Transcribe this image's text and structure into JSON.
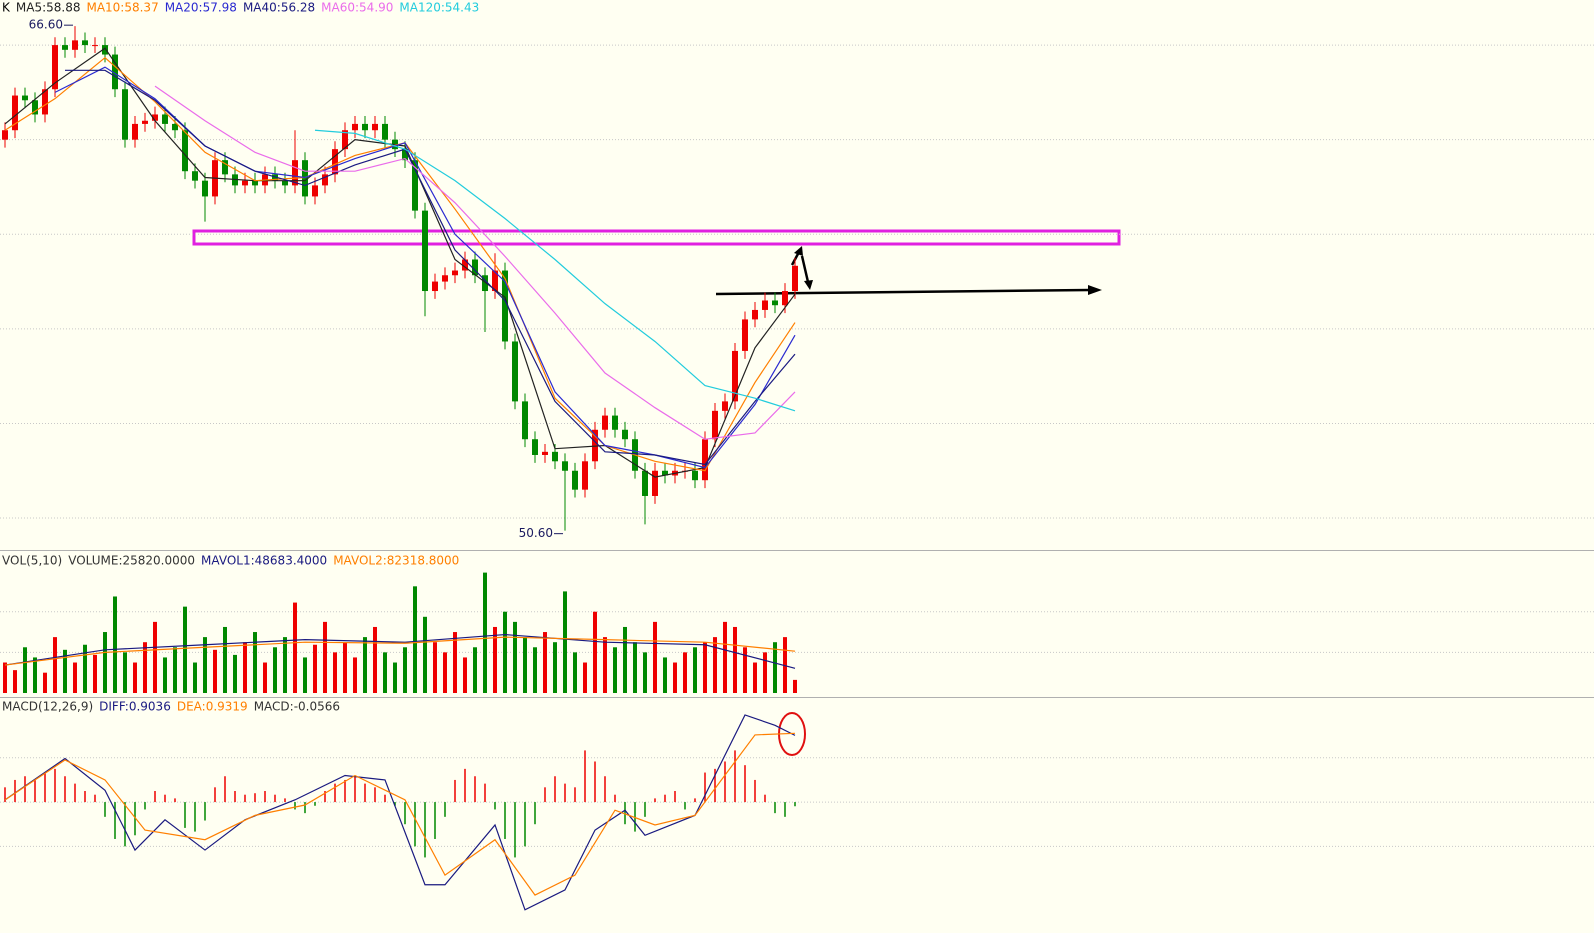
{
  "chart_data": [
    {
      "type": "candlestick",
      "title": "K",
      "open": [
        63.0,
        63.3,
        64.4,
        64.25,
        63.8,
        64.6,
        66.0,
        65.85,
        66.15,
        66.0,
        66.0,
        65.7,
        64.6,
        63.0,
        63.5,
        63.6,
        63.8,
        63.5,
        63.3,
        62.0,
        61.7,
        61.2,
        62.35,
        61.9,
        61.55,
        61.7,
        61.55,
        61.9,
        61.7,
        61.55,
        62.35,
        61.2,
        61.55,
        61.9,
        62.7,
        63.3,
        63.5,
        63.3,
        63.5,
        63.0,
        62.7,
        62.35,
        60.75,
        58.2,
        58.5,
        58.7,
        58.85,
        59.2,
        58.7,
        58.2,
        58.85,
        56.6,
        54.7,
        53.5,
        53.0,
        53.1,
        52.8,
        52.5,
        51.9,
        52.8,
        53.8,
        54.25,
        53.8,
        53.5,
        52.5,
        51.7,
        52.5,
        52.35,
        52.5,
        52.5,
        52.2,
        53.5,
        54.4,
        54.7,
        56.3,
        57.3,
        57.6,
        57.9,
        57.75,
        58.2
      ],
      "high": [
        63.55,
        64.65,
        64.65,
        64.5,
        64.85,
        66.25,
        66.25,
        66.6,
        66.4,
        66.25,
        66.25,
        65.95,
        64.85,
        63.75,
        63.85,
        64.05,
        64.05,
        63.75,
        63.55,
        62.25,
        61.95,
        62.6,
        62.6,
        62.15,
        61.95,
        61.95,
        62.15,
        62.15,
        61.95,
        63.3,
        62.6,
        61.8,
        62.15,
        62.95,
        63.55,
        63.75,
        63.75,
        63.75,
        63.75,
        63.25,
        62.95,
        62.6,
        61.0,
        58.75,
        58.95,
        59.1,
        59.45,
        59.45,
        58.95,
        59.4,
        59.1,
        56.85,
        54.95,
        53.75,
        53.35,
        53.35,
        53.05,
        52.75,
        53.05,
        54.05,
        54.5,
        54.5,
        54.05,
        53.75,
        52.75,
        52.75,
        52.75,
        52.75,
        52.75,
        52.75,
        53.75,
        54.65,
        54.95,
        56.55,
        57.55,
        57.85,
        58.15,
        58.15,
        58.45,
        59.25
      ],
      "low": [
        62.75,
        63.05,
        64.0,
        63.55,
        63.55,
        64.35,
        65.6,
        65.6,
        65.75,
        65.75,
        65.45,
        64.35,
        62.75,
        62.75,
        63.25,
        63.35,
        63.25,
        63.05,
        61.75,
        61.45,
        60.4,
        60.95,
        61.65,
        61.3,
        61.3,
        61.3,
        61.3,
        61.45,
        61.3,
        61.3,
        60.95,
        60.95,
        61.3,
        61.65,
        62.45,
        63.05,
        63.05,
        63.05,
        62.75,
        62.45,
        62.1,
        60.5,
        57.4,
        57.95,
        58.25,
        58.45,
        58.6,
        58.45,
        56.9,
        57.95,
        56.35,
        54.45,
        53.25,
        52.75,
        52.75,
        52.55,
        50.6,
        51.65,
        51.65,
        52.55,
        53.55,
        53.55,
        53.25,
        52.25,
        50.8,
        51.45,
        52.1,
        52.1,
        52.25,
        51.95,
        51.95,
        53.25,
        54.15,
        54.45,
        56.05,
        57.05,
        57.35,
        57.5,
        57.5,
        57.95
      ],
      "close": [
        63.3,
        64.4,
        64.25,
        63.8,
        64.6,
        66.0,
        65.85,
        66.15,
        66.0,
        66.0,
        65.7,
        64.6,
        63.0,
        63.5,
        63.6,
        63.8,
        63.5,
        63.3,
        62.0,
        61.7,
        61.2,
        62.35,
        61.9,
        61.55,
        61.7,
        61.55,
        61.9,
        61.7,
        61.55,
        62.35,
        61.2,
        61.55,
        61.9,
        62.7,
        63.3,
        63.5,
        63.3,
        63.5,
        63.0,
        62.7,
        62.35,
        60.75,
        58.2,
        58.5,
        58.7,
        58.85,
        59.2,
        58.7,
        58.2,
        58.85,
        56.6,
        54.7,
        53.5,
        53.0,
        53.1,
        52.8,
        52.5,
        51.9,
        52.8,
        53.8,
        54.25,
        53.8,
        53.5,
        52.5,
        51.7,
        52.5,
        52.35,
        52.5,
        52.5,
        52.2,
        53.5,
        54.4,
        54.7,
        56.3,
        57.3,
        57.6,
        57.9,
        57.75,
        58.2,
        59.0
      ],
      "up_color": "#ee0000",
      "down_color": "#008800",
      "series": [
        {
          "name": "MA5:58.88",
          "color": "#222222",
          "x": [
            0,
            5,
            10,
            15,
            20,
            25,
            30,
            35,
            40,
            45,
            50,
            55,
            60,
            65,
            70,
            75,
            79
          ],
          "values": [
            63.5,
            64.8,
            65.9,
            63.6,
            61.8,
            61.7,
            61.7,
            63.0,
            62.8,
            59.2,
            58.0,
            53.2,
            53.3,
            52.3,
            52.6,
            56.4,
            58.1
          ]
        },
        {
          "name": "MA10:58.37",
          "color": "#ff7f00",
          "x": [
            0,
            5,
            10,
            15,
            20,
            25,
            30,
            35,
            40,
            45,
            50,
            55,
            60,
            65,
            70,
            75,
            79
          ],
          "values": [
            63.3,
            64.3,
            65.6,
            64.2,
            62.6,
            61.7,
            61.8,
            62.5,
            62.9,
            60.8,
            58.6,
            54.8,
            53.3,
            52.8,
            52.5,
            55.3,
            57.2
          ]
        },
        {
          "name": "MA20:57.98",
          "color": "#2a2ad0",
          "x": [
            5,
            10,
            15,
            20,
            25,
            30,
            35,
            40,
            45,
            50,
            55,
            60,
            65,
            70,
            75,
            79
          ],
          "values": [
            64.5,
            65.3,
            64.3,
            62.8,
            62.0,
            61.8,
            62.4,
            62.9,
            60.0,
            58.5,
            55.0,
            53.3,
            53.0,
            52.6,
            54.6,
            56.8
          ]
        },
        {
          "name": "MA40:56.28",
          "color": "#1a1a80",
          "x": [
            6,
            10,
            15,
            20,
            25,
            30,
            35,
            40,
            45,
            50,
            55,
            60,
            65,
            70,
            75,
            79
          ],
          "values": [
            65.2,
            65.2,
            64.25,
            62.8,
            62.0,
            61.55,
            62.2,
            62.7,
            59.5,
            57.9,
            54.7,
            53.1,
            53.0,
            52.7,
            54.7,
            56.2
          ]
        },
        {
          "name": "MA60:54.90",
          "color": "#ea6cea",
          "x": [
            15,
            20,
            25,
            30,
            35,
            40,
            45,
            50,
            55,
            60,
            65,
            70,
            75,
            79
          ],
          "values": [
            64.7,
            63.6,
            62.6,
            62.0,
            62.0,
            62.4,
            61.0,
            59.3,
            57.5,
            55.6,
            54.5,
            53.5,
            53.7,
            55.0
          ]
        },
        {
          "name": "MA120:54.43",
          "color": "#22ccdd",
          "x": [
            31,
            35,
            40,
            45,
            50,
            55,
            60,
            65,
            70,
            75,
            79
          ],
          "values": [
            63.3,
            63.2,
            62.7,
            61.7,
            60.5,
            59.2,
            57.8,
            56.6,
            55.2,
            54.8,
            54.4
          ]
        }
      ],
      "ylim": [
        50.05,
        67.43
      ],
      "gridlines": [
        51,
        54,
        57,
        60,
        63,
        66
      ],
      "annotations": [
        {
          "text": "66.60",
          "value": 66.6,
          "x": 7
        },
        {
          "text": "50.60",
          "value": 50.6,
          "x": 56
        }
      ]
    },
    {
      "type": "volume",
      "title": "VOL(5,10)",
      "legend_label": "VOLUME:25820.0000",
      "values": [
        60000,
        45000,
        90000,
        70000,
        40000,
        110000,
        85000,
        60000,
        95000,
        75000,
        120000,
        190000,
        80000,
        60000,
        100000,
        140000,
        70000,
        90000,
        170000,
        60000,
        110000,
        85000,
        130000,
        75000,
        100000,
        120000,
        60000,
        90000,
        110000,
        178000,
        70000,
        95000,
        140000,
        80000,
        100000,
        70000,
        110000,
        130000,
        80000,
        60000,
        90000,
        210000,
        150000,
        100000,
        80000,
        120000,
        70000,
        90000,
        237000,
        130000,
        160000,
        140000,
        110000,
        90000,
        120000,
        100000,
        200000,
        80000,
        60000,
        160000,
        110000,
        90000,
        130000,
        100000,
        80000,
        140000,
        70000,
        60000,
        80000,
        90000,
        100000,
        110000,
        140000,
        130000,
        90000,
        60000,
        80000,
        100000,
        110000,
        25820
      ],
      "series": [
        {
          "name": "MAVOL1:48683.4000",
          "color": "#1a1a80",
          "x": [
            0,
            10,
            20,
            30,
            40,
            50,
            60,
            70,
            79
          ],
          "values": [
            55000,
            85000,
            95000,
            105000,
            100000,
            115000,
            100000,
            95000,
            48683.4
          ]
        },
        {
          "name": "MAVOL2:82318.8000",
          "color": "#ff7f00",
          "x": [
            0,
            10,
            20,
            30,
            40,
            50,
            60,
            70,
            79
          ],
          "values": [
            55000,
            80000,
            90000,
            100000,
            98000,
            110000,
            105000,
            100000,
            82318.8
          ]
        }
      ],
      "ylim": [
        0,
        250000
      ],
      "gridlines": [
        80000,
        160000
      ]
    },
    {
      "type": "macd",
      "title": "MACD(12,26,9)",
      "histogram": {
        "name": "MACD:-0.0566",
        "values": [
          0.2,
          0.3,
          0.35,
          0.3,
          0.4,
          0.45,
          0.35,
          0.25,
          0.15,
          0.1,
          -0.2,
          -0.5,
          -0.6,
          -0.45,
          -0.1,
          0.15,
          0.1,
          0.05,
          -0.35,
          -0.4,
          -0.25,
          0.2,
          0.35,
          0.15,
          0.1,
          0.12,
          0.15,
          0.1,
          0.05,
          -0.1,
          -0.15,
          -0.05,
          0.15,
          0.25,
          0.3,
          0.35,
          0.25,
          0.2,
          0.1,
          -0.05,
          -0.3,
          -0.6,
          -0.75,
          -0.5,
          -0.2,
          0.3,
          0.45,
          0.35,
          0.25,
          -0.1,
          -0.5,
          -0.75,
          -0.6,
          -0.3,
          0.2,
          0.35,
          0.25,
          0.2,
          0.7,
          0.55,
          0.35,
          0.1,
          -0.3,
          -0.4,
          -0.2,
          0.05,
          0.1,
          0.15,
          -0.1,
          0.05,
          0.4,
          0.45,
          0.55,
          0.7,
          0.5,
          0.3,
          0.1,
          -0.15,
          -0.2,
          -0.0566
        ]
      },
      "series": [
        {
          "name": "DIFF:0.9036",
          "color": "#1a1a80",
          "x": [
            0,
            6,
            10,
            13,
            16,
            20,
            24,
            29,
            34,
            38,
            42,
            44,
            49,
            52,
            56,
            59,
            62,
            64,
            69,
            74,
            77,
            79
          ],
          "values": [
            0.03,
            0.59,
            0.16,
            -0.65,
            -0.24,
            -0.65,
            -0.24,
            0.03,
            0.36,
            0.3,
            -1.12,
            -1.12,
            -0.31,
            -1.46,
            -1.19,
            -0.38,
            -0.11,
            -0.45,
            -0.18,
            1.18,
            1.04,
            0.9036
          ]
        },
        {
          "name": "DEA:0.9319",
          "color": "#ff7f00",
          "x": [
            0,
            6,
            10,
            14,
            20,
            25,
            30,
            35,
            40,
            44,
            49,
            53,
            57,
            61,
            65,
            69,
            75,
            79
          ],
          "values": [
            0.03,
            0.57,
            0.3,
            -0.38,
            -0.51,
            -0.18,
            -0.04,
            0.36,
            0.03,
            -0.99,
            -0.51,
            -1.26,
            -0.99,
            -0.11,
            -0.31,
            -0.18,
            0.91,
            0.9319
          ]
        }
      ],
      "ylim": [
        -1.53,
        1.41
      ],
      "gridlines": [
        -0.6,
        0,
        0.6
      ],
      "up_color": "#ee0000",
      "down_color": "#008800"
    }
  ]
}
